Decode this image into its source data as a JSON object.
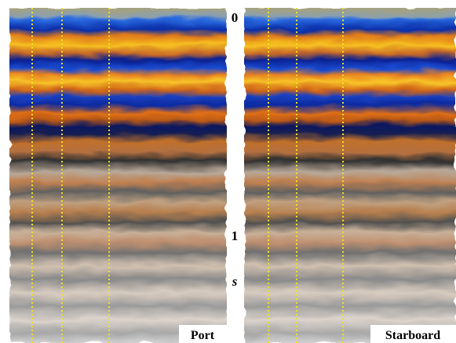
{
  "time_axis": {
    "start": "0",
    "end": "1",
    "unit": "s"
  },
  "panels": [
    {
      "label": "Port"
    },
    {
      "label": "Starboard"
    }
  ]
}
